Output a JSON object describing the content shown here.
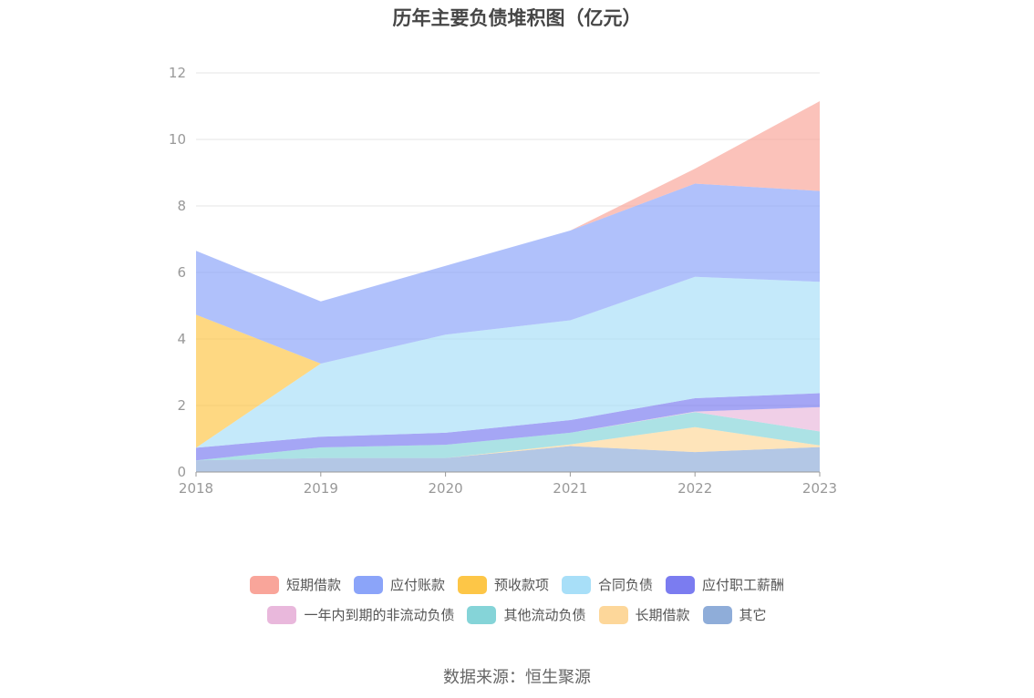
{
  "title": "历年主要负债堆积图（亿元）",
  "source": "数据来源：恒生聚源",
  "chart_data": {
    "type": "area",
    "stacked": true,
    "categories": [
      "2018",
      "2019",
      "2020",
      "2021",
      "2022",
      "2023"
    ],
    "ylim": [
      0,
      12
    ],
    "yticks": [
      0,
      2,
      4,
      6,
      8,
      10,
      12
    ],
    "grid": true,
    "legend_position": "bottom",
    "series": [
      {
        "name": "其它",
        "color": "#8fadd9",
        "values": [
          0.35,
          0.42,
          0.42,
          0.78,
          0.6,
          0.75
        ]
      },
      {
        "name": "长期借款",
        "color": "#fdd79a",
        "values": [
          0,
          0,
          0,
          0.05,
          0.75,
          0.05
        ]
      },
      {
        "name": "其他流动负债",
        "color": "#85d4d8",
        "values": [
          0,
          0.32,
          0.4,
          0.35,
          0.45,
          0.42
        ]
      },
      {
        "name": "一年内到期的非流动负债",
        "color": "#e9b8dc",
        "values": [
          0,
          0,
          0,
          0,
          0.02,
          0.73
        ]
      },
      {
        "name": "应付职工薪酬",
        "color": "#7b7cf0",
        "values": [
          0.38,
          0.32,
          0.36,
          0.38,
          0.4,
          0.42
        ]
      },
      {
        "name": "合同负债",
        "color": "#a8dff8",
        "values": [
          0,
          2.2,
          2.95,
          3.0,
          3.65,
          3.35
        ]
      },
      {
        "name": "预收款项",
        "color": "#fdc647",
        "values": [
          4.0,
          0,
          0,
          0,
          0,
          0
        ]
      },
      {
        "name": "应付账款",
        "color": "#8ba4f9",
        "values": [
          1.92,
          1.87,
          2.07,
          2.7,
          2.8,
          2.73
        ]
      },
      {
        "name": "短期借款",
        "color": "#f9a59a",
        "values": [
          0,
          0,
          0,
          0,
          0.45,
          2.7
        ]
      }
    ],
    "legend_order": [
      "短期借款",
      "应付账款",
      "预收款项",
      "合同负债",
      "应付职工薪酬",
      "一年内到期的非流动负债",
      "其他流动负债",
      "长期借款",
      "其它"
    ]
  }
}
